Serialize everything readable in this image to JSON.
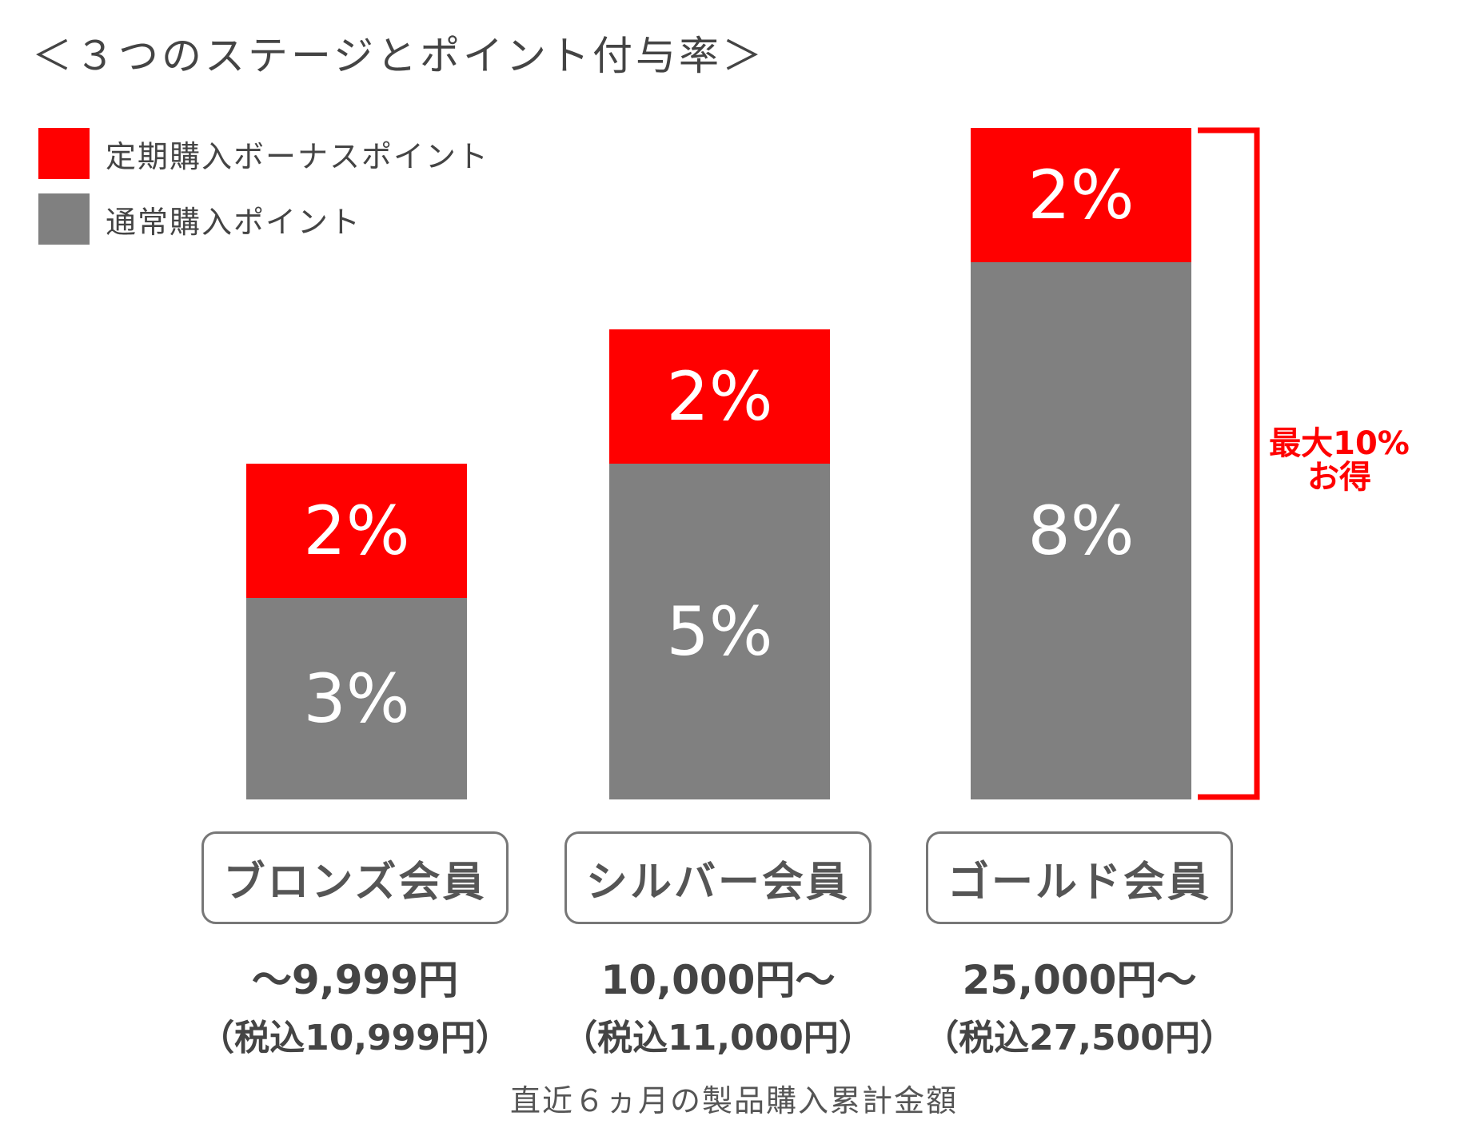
{
  "title": "＜３つのステージとポイント付与率＞",
  "legend": [
    {
      "label": "定期購入ボーナスポイント",
      "color": "#ff0000"
    },
    {
      "label": "通常購入ポイント",
      "color": "#808080"
    }
  ],
  "colors": {
    "bonus": "#ff0000",
    "regular": "#808080",
    "accent": "#ff0000"
  },
  "chart_data": {
    "type": "bar",
    "stacked": true,
    "categories": [
      "ブロンズ会員",
      "シルバー会員",
      "ゴールド会員"
    ],
    "series": [
      {
        "name": "通常購入ポイント",
        "values": [
          3,
          5,
          8
        ]
      },
      {
        "name": "定期購入ボーナスポイント",
        "values": [
          2,
          2,
          2
        ]
      }
    ],
    "value_labels": {
      "regular": [
        "3%",
        "5%",
        "8%"
      ],
      "bonus": [
        "2%",
        "2%",
        "2%"
      ]
    },
    "unit": "%",
    "legend_position": "top-left",
    "grid": false,
    "annotation": {
      "line1": "最大10%",
      "line2": "お得"
    }
  },
  "stages": [
    {
      "name": "ブロンズ会員",
      "price": "～9,999円",
      "tax": "（税込10,999円）"
    },
    {
      "name": "シルバー会員",
      "price": "10,000円～",
      "tax": "（税込11,000円）"
    },
    {
      "name": "ゴールド会員",
      "price": "25,000円～",
      "tax": "（税込27,500円）"
    }
  ],
  "footnote": "直近６ヵ月の製品購入累計金額"
}
